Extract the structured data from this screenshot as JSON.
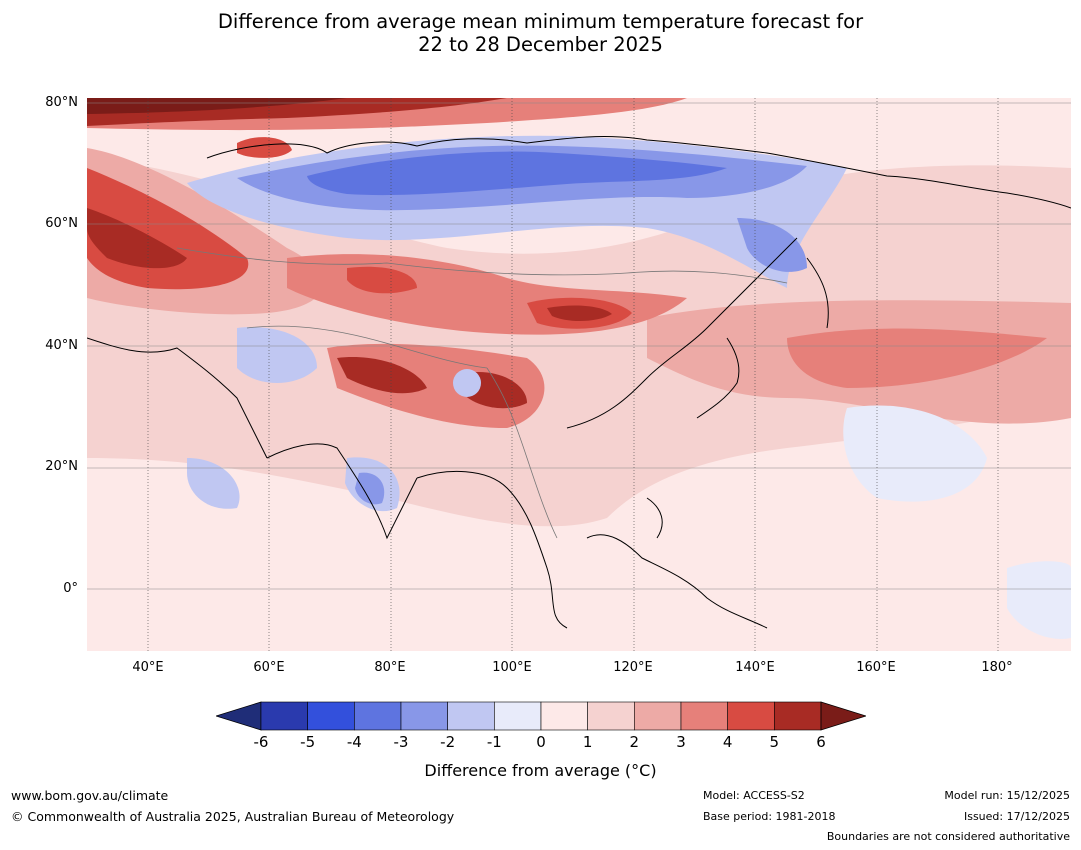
{
  "title": {
    "line1": "Difference from average mean minimum temperature forecast for",
    "line2": "22 to 28 December 2025"
  },
  "map": {
    "lat_labels": [
      "80°N",
      "60°N",
      "40°N",
      "20°N",
      "0°"
    ],
    "lon_labels": [
      "40°E",
      "60°E",
      "80°E",
      "100°E",
      "120°E",
      "140°E",
      "160°E",
      "180°"
    ]
  },
  "colorbar": {
    "ticks": [
      "-6",
      "-5",
      "-4",
      "-3",
      "-2",
      "-1",
      "0",
      "1",
      "2",
      "3",
      "4",
      "5",
      "6"
    ],
    "colors": [
      "#1f2d78",
      "#2a3aae",
      "#3350dc",
      "#5e74e0",
      "#8897e8",
      "#c0c7f2",
      "#e8ebfa",
      "#fde9e8",
      "#f5d2d0",
      "#edaaa6",
      "#e6807a",
      "#d84b42",
      "#a82b24",
      "#7a1c18"
    ],
    "label": "Difference from average (°C)"
  },
  "footer": {
    "website": "www.bom.gov.au/climate",
    "copyright": "© Commonwealth of Australia 2025, Australian Bureau of Meteorology",
    "model": "Model: ACCESS-S2",
    "base_period": "Base period: 1981-2018",
    "model_run": "Model run: 15/12/2025",
    "issued": "Issued: 17/12/2025",
    "disclaimer": "Boundaries are not considered authoritative"
  }
}
